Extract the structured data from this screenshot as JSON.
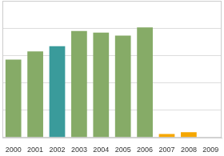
{
  "chart_data": {
    "type": "bar",
    "categories": [
      "2000",
      "2001",
      "2002",
      "2003",
      "2004",
      "2005",
      "2006",
      "2007",
      "2008",
      "2009"
    ],
    "values": [
      2.85,
      3.15,
      3.34,
      3.9,
      3.84,
      3.73,
      4.03,
      0.14,
      0.2,
      0
    ],
    "colors": [
      "#86ab67",
      "#86ab67",
      "#3a9b9b",
      "#86ab67",
      "#86ab67",
      "#86ab67",
      "#86ab67",
      "#f5a700",
      "#f5a700",
      "#f5a700"
    ],
    "ylim": [
      0,
      5
    ],
    "yticks": [
      0,
      1,
      2,
      3,
      4,
      5
    ],
    "grid": true,
    "tick_labels": "x"
  }
}
